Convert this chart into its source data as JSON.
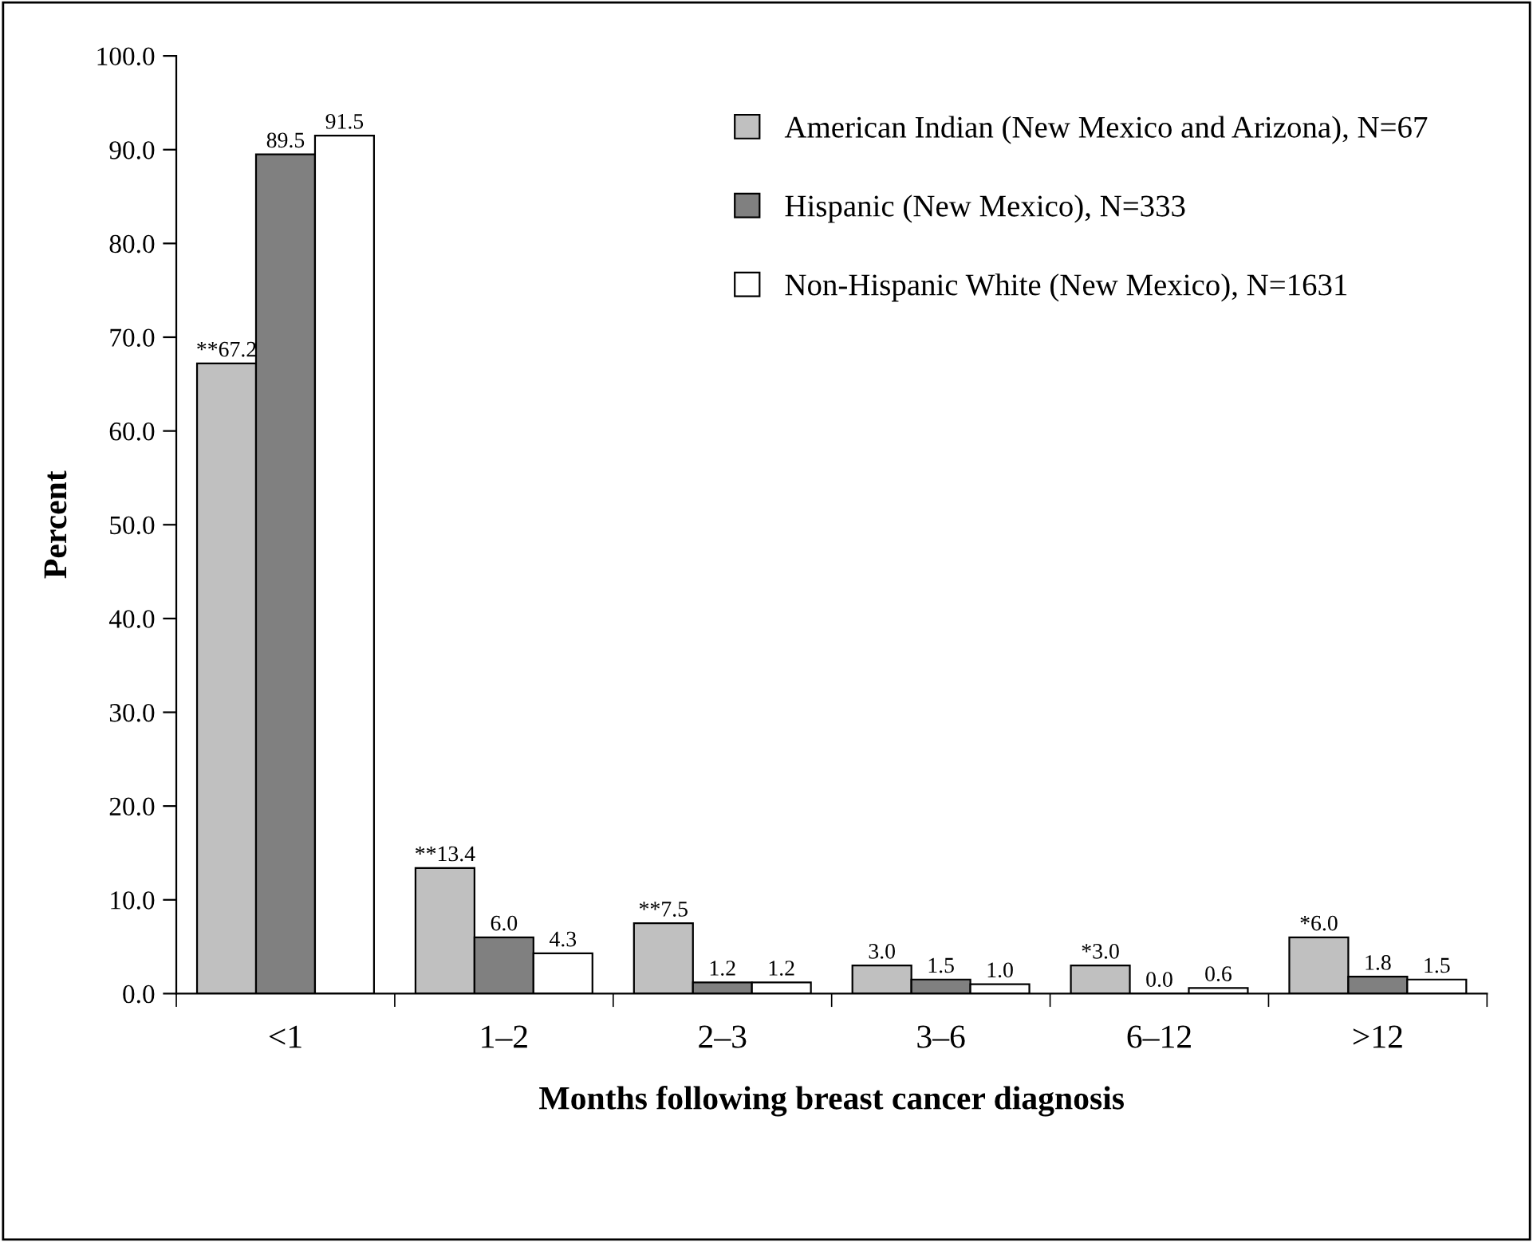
{
  "chart_data": {
    "type": "bar",
    "xlabel": "Months following breast cancer diagnosis",
    "ylabel": "Percent",
    "categories": [
      "<1",
      "1–2",
      "2–3",
      "3–6",
      "6–12",
      ">12"
    ],
    "series": [
      {
        "name": "American Indian (New Mexico and Arizona), N=67",
        "color": "#c0c0c0",
        "values": [
          67.2,
          13.4,
          7.5,
          3.0,
          3.0,
          6.0
        ],
        "value_labels": [
          "**67.2",
          "**13.4",
          "**7.5",
          "3.0",
          "*3.0",
          "*6.0"
        ]
      },
      {
        "name": "Hispanic (New Mexico), N=333",
        "color": "#808080",
        "values": [
          89.5,
          6.0,
          1.2,
          1.5,
          0.0,
          1.8
        ],
        "value_labels": [
          "89.5",
          "6.0",
          "1.2",
          "1.5",
          "0.0",
          "1.8"
        ]
      },
      {
        "name": "Non-Hispanic White (New Mexico), N=1631",
        "color": "#ffffff",
        "values": [
          91.5,
          4.3,
          1.2,
          1.0,
          0.6,
          1.5
        ],
        "value_labels": [
          "91.5",
          "4.3",
          "1.2",
          "1.0",
          "0.6",
          "1.5"
        ]
      }
    ],
    "ylim": [
      0,
      100
    ],
    "yticks": [
      {
        "value": 0,
        "label": "0.0"
      },
      {
        "value": 10,
        "label": "10.0"
      },
      {
        "value": 20,
        "label": "20.0"
      },
      {
        "value": 30,
        "label": "30.0"
      },
      {
        "value": 40,
        "label": "40.0"
      },
      {
        "value": 50,
        "label": "50.0"
      },
      {
        "value": 60,
        "label": "60.0"
      },
      {
        "value": 70,
        "label": "70.0"
      },
      {
        "value": 80,
        "label": "80.0"
      },
      {
        "value": 90,
        "label": "90.0"
      },
      {
        "value": 100,
        "label": "100.0"
      }
    ],
    "legend": "top right",
    "grid": false
  }
}
